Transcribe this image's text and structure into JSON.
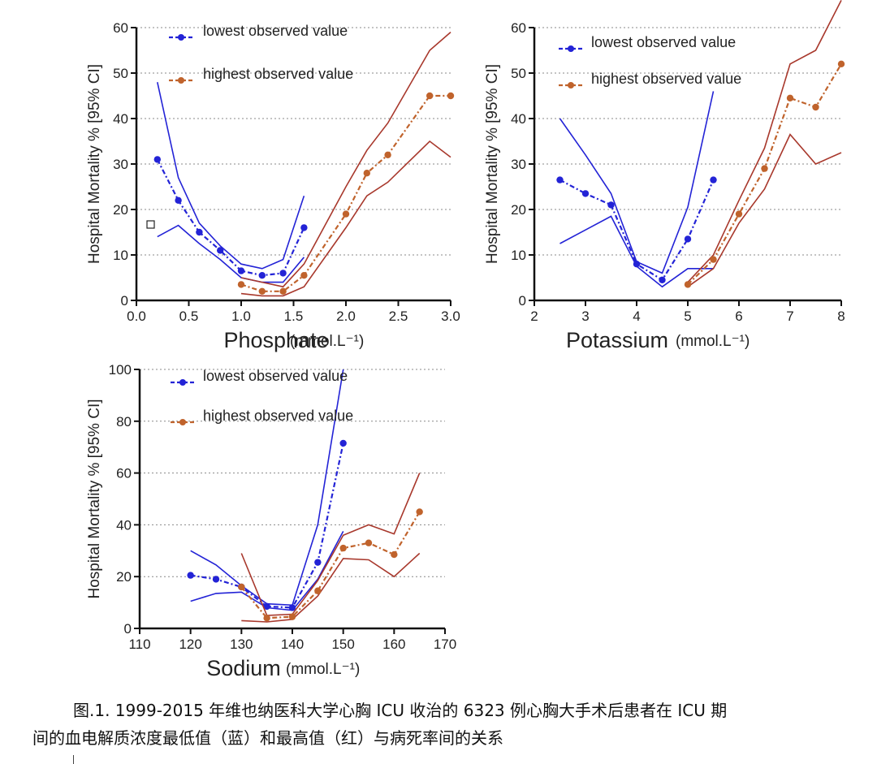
{
  "colors": {
    "low": "#2323d6",
    "high": "#c0632c",
    "band_high": "#a8382c",
    "axis": "#111111",
    "grid": "#888888"
  },
  "chart_data": [
    {
      "type": "line",
      "ylabel": "Hospital Mortality % [95% CI]",
      "xlabel": "Phosphate",
      "xunit": "(mmol.L⁻¹)",
      "xlim": [
        0.0,
        3.0
      ],
      "ylim": [
        0,
        60
      ],
      "xticks": [
        "0.0",
        "0.5",
        "1.0",
        "1.5",
        "2.0",
        "2.5",
        "3.0"
      ],
      "yticks": [
        "0",
        "10",
        "20",
        "30",
        "40",
        "50",
        "60"
      ],
      "grid": "horizontal dotted",
      "legend": [
        "lowest observed value",
        "highest observed value"
      ],
      "series": [
        {
          "name": "lowest observed value",
          "x": [
            0.2,
            0.4,
            0.6,
            0.8,
            1.0,
            1.2,
            1.4,
            1.6
          ],
          "y": [
            31,
            22,
            15,
            11,
            6.5,
            5.5,
            6,
            16
          ],
          "upper": [
            48,
            27,
            17,
            12,
            8,
            7,
            9,
            23
          ],
          "lower": [
            14,
            16.5,
            12.5,
            9,
            5,
            4,
            4,
            9.5
          ]
        },
        {
          "name": "highest observed value",
          "x": [
            1.0,
            1.2,
            1.4,
            1.6,
            2.0,
            2.2,
            2.4,
            2.8,
            3.0
          ],
          "y": [
            3.5,
            2,
            2,
            5.5,
            19,
            28,
            32,
            45,
            45
          ],
          "upper": [
            5,
            4,
            3,
            8,
            25,
            33,
            39,
            55,
            59
          ],
          "lower": [
            1.5,
            1,
            1,
            3,
            16,
            23,
            26,
            35,
            31.5
          ]
        }
      ],
      "annotation": "□"
    },
    {
      "type": "line",
      "ylabel": "Hospital Mortality % [95% CI]",
      "xlabel": "Potassium",
      "xunit": "(mmol.L⁻¹)",
      "xlim": [
        2,
        8
      ],
      "ylim": [
        0,
        60
      ],
      "xticks": [
        "2",
        "3",
        "4",
        "5",
        "6",
        "7",
        "8"
      ],
      "yticks": [
        "0",
        "10",
        "20",
        "30",
        "40",
        "50",
        "60"
      ],
      "grid": "horizontal dotted",
      "legend": [
        "lowest observed value",
        "highest observed value"
      ],
      "series": [
        {
          "name": "lowest observed value",
          "x": [
            2.5,
            3.0,
            3.5,
            4.0,
            4.5,
            5.0,
            5.5
          ],
          "y": [
            26.5,
            23.5,
            21,
            8,
            4.5,
            13.5,
            26.5
          ],
          "upper": [
            40,
            32,
            23.5,
            8.5,
            6,
            20.5,
            46
          ],
          "lower": [
            12.5,
            15.5,
            18.5,
            7.5,
            3,
            7,
            7
          ]
        },
        {
          "name": "highest observed value",
          "x": [
            5.0,
            5.5,
            6.0,
            6.5,
            7.0,
            7.5,
            8.0
          ],
          "y": [
            3.5,
            9,
            19,
            29,
            44.5,
            42.5,
            52
          ],
          "upper": [
            4,
            10,
            22,
            33.5,
            52,
            55,
            66
          ],
          "lower": [
            3,
            7,
            17,
            24.5,
            36.5,
            30,
            32.5
          ]
        }
      ]
    },
    {
      "type": "line",
      "ylabel": "Hospital Mortality % [95% CI]",
      "xlabel": "Sodium",
      "xunit": "(mmol.L⁻¹)",
      "xlim": [
        110,
        170
      ],
      "ylim": [
        0,
        100
      ],
      "xticks": [
        "110",
        "120",
        "130",
        "140",
        "150",
        "160",
        "170"
      ],
      "yticks": [
        "0",
        "20",
        "40",
        "60",
        "80",
        "100"
      ],
      "grid": "horizontal dotted",
      "legend": [
        "lowest observed value",
        "highest observed value"
      ],
      "series": [
        {
          "name": "lowest observed value",
          "x": [
            120,
            125,
            130,
            135,
            140,
            145,
            150
          ],
          "y": [
            20.5,
            19,
            16,
            8.5,
            8,
            25.5,
            71.5
          ],
          "upper": [
            30,
            24.5,
            16.5,
            9.5,
            9,
            40,
            100
          ],
          "lower": [
            10.5,
            13.5,
            14,
            8,
            7,
            19,
            37.5
          ]
        },
        {
          "name": "highest observed value",
          "x": [
            130,
            135,
            140,
            145,
            150,
            155,
            160,
            165
          ],
          "y": [
            16,
            4,
            4.5,
            14.5,
            31,
            33,
            28.5,
            45
          ],
          "upper": [
            29,
            5,
            5.5,
            18.5,
            36,
            40,
            36.5,
            60
          ],
          "lower": [
            3,
            2.5,
            3.5,
            12.5,
            27,
            26.5,
            20,
            29
          ]
        }
      ]
    }
  ],
  "caption": {
    "line1": "图.1. 1999-2015 年维也纳医科大学心胸 ICU 收治的 6323 例心胸大手术后患者在 ICU 期",
    "line2": "间的血电解质浓度最低值（蓝）和最高值（红）与病死率间的关系"
  }
}
